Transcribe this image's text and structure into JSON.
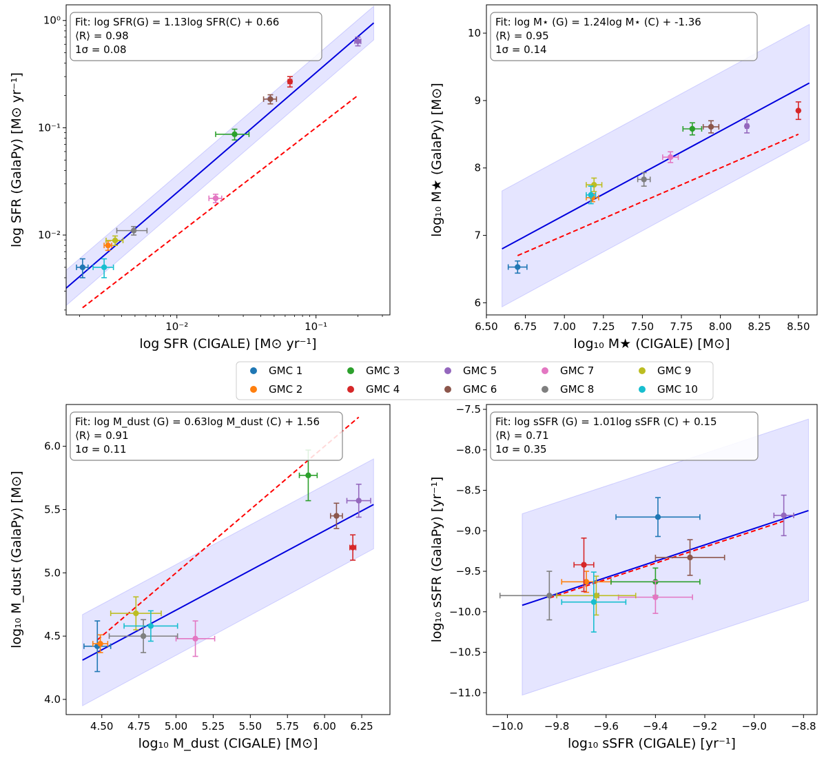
{
  "legend": {
    "placement": "center, between panel rows",
    "entries": [
      {
        "label": "GMC 1",
        "color": "#1f77b4"
      },
      {
        "label": "GMC 2",
        "color": "#ff7f0e"
      },
      {
        "label": "GMC 3",
        "color": "#2ca02c"
      },
      {
        "label": "GMC 4",
        "color": "#d62728"
      },
      {
        "label": "GMC 5",
        "color": "#9467bd"
      },
      {
        "label": "GMC 6",
        "color": "#8c564b"
      },
      {
        "label": "GMC 7",
        "color": "#e377c2"
      },
      {
        "label": "GMC 8",
        "color": "#7f7f7f"
      },
      {
        "label": "GMC 9",
        "color": "#bcbd22"
      },
      {
        "label": "GMC 10",
        "color": "#17becf"
      }
    ]
  },
  "styles": {
    "fit_color": "#0000dd",
    "band_color": "#0000ff",
    "one_to_one_color": "#ff0000"
  },
  "chart_data": [
    {
      "id": "sfr",
      "type": "scatter",
      "xscale": "log",
      "yscale": "log",
      "xlim": [
        0.0016,
        0.34
      ],
      "ylim": [
        0.0018,
        1.4
      ],
      "xlabel": "log SFR (CIGALE) [M⊙ yr⁻¹]",
      "ylabel": "log SFR (GalaPy) [M⊙ yr⁻¹]",
      "xticks": [
        {
          "v": 0.01,
          "label": "10⁻²"
        },
        {
          "v": 0.1,
          "label": "10⁻¹"
        }
      ],
      "yticks": [
        {
          "v": 0.01,
          "label": "10⁻²"
        },
        {
          "v": 0.1,
          "label": "10⁻¹"
        },
        {
          "v": 1,
          "label": "10⁰"
        }
      ],
      "fit_box": {
        "line1": "Fit: log  SFR(G) = 1.13log  SFR(C) + 0.66",
        "line2": "⟨R⟩ = 0.98",
        "line3": "1σ = 0.08"
      },
      "fit_line": {
        "x": [
          0.0016,
          0.26
        ],
        "y": [
          0.0032,
          0.95
        ]
      },
      "band": {
        "x": [
          0.0016,
          0.26
        ],
        "lower": [
          0.0022,
          0.66
        ],
        "upper": [
          0.0047,
          1.36
        ]
      },
      "one_to_one": {
        "x": [
          0.0021,
          0.2
        ],
        "y": [
          0.0021,
          0.2
        ]
      },
      "points": [
        {
          "gmc": 1,
          "x": 0.0021,
          "y": 0.005,
          "xerr": 0.0002,
          "yerr": 0.001
        },
        {
          "gmc": 2,
          "x": 0.0032,
          "y": 0.008,
          "xerr": 0.0002,
          "yerr": 0.0008
        },
        {
          "gmc": 3,
          "x": 0.026,
          "y": 0.087,
          "xerr": 0.007,
          "yerr": 0.01
        },
        {
          "gmc": 4,
          "x": 0.065,
          "y": 0.27,
          "xerr": 0.002,
          "yerr": 0.03
        },
        {
          "gmc": 5,
          "x": 0.2,
          "y": 0.64,
          "xerr": 0.01,
          "yerr": 0.06
        },
        {
          "gmc": 6,
          "x": 0.047,
          "y": 0.185,
          "xerr": 0.005,
          "yerr": 0.018
        },
        {
          "gmc": 7,
          "x": 0.019,
          "y": 0.022,
          "xerr": 0.002,
          "yerr": 0.002
        },
        {
          "gmc": 8,
          "x": 0.0049,
          "y": 0.011,
          "xerr": 0.0012,
          "yerr": 0.001
        },
        {
          "gmc": 9,
          "x": 0.0036,
          "y": 0.0089,
          "xerr": 0.0005,
          "yerr": 0.0009
        },
        {
          "gmc": 10,
          "x": 0.003,
          "y": 0.005,
          "xerr": 0.0005,
          "yerr": 0.001
        }
      ]
    },
    {
      "id": "mstar",
      "type": "scatter",
      "xscale": "linear",
      "yscale": "linear",
      "xlim": [
        6.5,
        8.62
      ],
      "ylim": [
        5.82,
        10.42
      ],
      "xlabel": "log₁₀ M★ (CIGALE) [M⊙]",
      "ylabel": "log₁₀ M★ (GalaPy) [M⊙]",
      "xticks": [
        {
          "v": 6.5,
          "label": "6.50"
        },
        {
          "v": 6.75,
          "label": "6.75"
        },
        {
          "v": 7.0,
          "label": "7.00"
        },
        {
          "v": 7.25,
          "label": "7.25"
        },
        {
          "v": 7.5,
          "label": "7.50"
        },
        {
          "v": 7.75,
          "label": "7.75"
        },
        {
          "v": 8.0,
          "label": "8.00"
        },
        {
          "v": 8.25,
          "label": "8.25"
        },
        {
          "v": 8.5,
          "label": "8.50"
        }
      ],
      "yticks": [
        {
          "v": 6,
          "label": "6"
        },
        {
          "v": 7,
          "label": "7"
        },
        {
          "v": 8,
          "label": "8"
        },
        {
          "v": 9,
          "label": "9"
        },
        {
          "v": 10,
          "label": "10"
        }
      ],
      "fit_box": {
        "line1": "Fit: log  M⋆ (G) = 1.24log  M⋆ (C) + -1.36",
        "line2": "⟨R⟩ = 0.95",
        "line3": "1σ = 0.14"
      },
      "fit_line": {
        "x": [
          6.6,
          8.57
        ],
        "y": [
          6.8,
          9.26
        ]
      },
      "band": {
        "x": [
          6.6,
          8.57
        ],
        "lower": [
          5.94,
          8.41
        ],
        "upper": [
          7.66,
          10.13
        ]
      },
      "one_to_one": {
        "x": [
          6.7,
          8.5
        ],
        "y": [
          6.7,
          8.5
        ]
      },
      "points": [
        {
          "gmc": 1,
          "x": 6.7,
          "y": 6.53,
          "xerr": 0.06,
          "yerr": 0.09
        },
        {
          "gmc": 2,
          "x": 7.18,
          "y": 7.56,
          "xerr": 0.04,
          "yerr": 0.06
        },
        {
          "gmc": 3,
          "x": 7.82,
          "y": 8.58,
          "xerr": 0.06,
          "yerr": 0.09
        },
        {
          "gmc": 4,
          "x": 8.5,
          "y": 8.85,
          "xerr": 0.0,
          "yerr": 0.13
        },
        {
          "gmc": 5,
          "x": 8.17,
          "y": 8.62,
          "xerr": 0.01,
          "yerr": 0.1
        },
        {
          "gmc": 6,
          "x": 7.94,
          "y": 8.61,
          "xerr": 0.05,
          "yerr": 0.09
        },
        {
          "gmc": 7,
          "x": 7.68,
          "y": 8.16,
          "xerr": 0.05,
          "yerr": 0.08
        },
        {
          "gmc": 8,
          "x": 7.51,
          "y": 7.83,
          "xerr": 0.04,
          "yerr": 0.1
        },
        {
          "gmc": 9,
          "x": 7.19,
          "y": 7.75,
          "xerr": 0.05,
          "yerr": 0.1
        },
        {
          "gmc": 10,
          "x": 7.17,
          "y": 7.6,
          "xerr": 0.03,
          "yerr": 0.13
        }
      ]
    },
    {
      "id": "mdust",
      "type": "scatter",
      "xscale": "linear",
      "yscale": "linear",
      "xlim": [
        4.26,
        6.44
      ],
      "ylim": [
        3.88,
        6.33
      ],
      "xlabel": "log₁₀ M_dust (CIGALE) [M⊙]",
      "ylabel": "log₁₀ M_dust (GalaPy) [M⊙]",
      "xticks": [
        {
          "v": 4.5,
          "label": "4.50"
        },
        {
          "v": 4.75,
          "label": "4.75"
        },
        {
          "v": 5.0,
          "label": "5.00"
        },
        {
          "v": 5.25,
          "label": "5.25"
        },
        {
          "v": 5.5,
          "label": "5.50"
        },
        {
          "v": 5.75,
          "label": "5.75"
        },
        {
          "v": 6.0,
          "label": "6.00"
        },
        {
          "v": 6.25,
          "label": "6.25"
        }
      ],
      "yticks": [
        {
          "v": 4.0,
          "label": "4.0"
        },
        {
          "v": 4.5,
          "label": "4.5"
        },
        {
          "v": 5.0,
          "label": "5.0"
        },
        {
          "v": 5.5,
          "label": "5.5"
        },
        {
          "v": 6.0,
          "label": "6.0"
        }
      ],
      "fit_box": {
        "line1": "Fit: log  M_dust (G) = 0.63log  M_dust (C) + 1.56",
        "line2": "⟨R⟩ = 0.91",
        "line3": "1σ = 0.11"
      },
      "fit_line": {
        "x": [
          4.37,
          6.33
        ],
        "y": [
          4.31,
          5.54
        ]
      },
      "band": {
        "x": [
          4.37,
          6.33
        ],
        "lower": [
          3.95,
          5.19
        ],
        "upper": [
          4.67,
          5.9
        ]
      },
      "one_to_one": {
        "x": [
          4.47,
          6.23
        ],
        "y": [
          4.47,
          6.23
        ]
      },
      "points": [
        {
          "gmc": 1,
          "x": 4.47,
          "y": 4.42,
          "xerr": 0.09,
          "yerr": 0.2
        },
        {
          "gmc": 2,
          "x": 4.49,
          "y": 4.44,
          "xerr": 0.05,
          "yerr": 0.07
        },
        {
          "gmc": 3,
          "x": 5.89,
          "y": 5.77,
          "xerr": 0.06,
          "yerr": 0.2
        },
        {
          "gmc": 4,
          "x": 6.19,
          "y": 5.2,
          "xerr": 0.02,
          "yerr": 0.1
        },
        {
          "gmc": 5,
          "x": 6.23,
          "y": 5.57,
          "xerr": 0.08,
          "yerr": 0.13
        },
        {
          "gmc": 6,
          "x": 6.08,
          "y": 5.45,
          "xerr": 0.04,
          "yerr": 0.1
        },
        {
          "gmc": 7,
          "x": 5.13,
          "y": 4.48,
          "xerr": 0.13,
          "yerr": 0.14
        },
        {
          "gmc": 8,
          "x": 4.78,
          "y": 4.5,
          "xerr": 0.23,
          "yerr": 0.13
        },
        {
          "gmc": 9,
          "x": 4.73,
          "y": 4.68,
          "xerr": 0.17,
          "yerr": 0.13
        },
        {
          "gmc": 10,
          "x": 4.83,
          "y": 4.58,
          "xerr": 0.18,
          "yerr": 0.12
        }
      ]
    },
    {
      "id": "ssfr",
      "type": "scatter",
      "xscale": "linear",
      "yscale": "linear",
      "xlim": [
        -10.085,
        -8.745
      ],
      "ylim": [
        -11.27,
        -7.44
      ],
      "xlabel": "log₁₀ sSFR (CIGALE) [yr⁻¹]",
      "ylabel": "log₁₀ sSFR (GalaPy) [yr⁻¹]",
      "xticks": [
        {
          "v": -10.0,
          "label": "−10.0"
        },
        {
          "v": -9.8,
          "label": "−9.8"
        },
        {
          "v": -9.6,
          "label": "−9.6"
        },
        {
          "v": -9.4,
          "label": "−9.4"
        },
        {
          "v": -9.2,
          "label": "−9.2"
        },
        {
          "v": -9.0,
          "label": "−9.0"
        },
        {
          "v": -8.8,
          "label": "−8.8"
        }
      ],
      "yticks": [
        {
          "v": -11.0,
          "label": "−11.0"
        },
        {
          "v": -10.5,
          "label": "−10.5"
        },
        {
          "v": -10.0,
          "label": "−10.0"
        },
        {
          "v": -9.5,
          "label": "−9.5"
        },
        {
          "v": -9.0,
          "label": "−9.0"
        },
        {
          "v": -8.5,
          "label": "−8.5"
        },
        {
          "v": -8.0,
          "label": "−8.0"
        },
        {
          "v": -7.5,
          "label": "−7.5"
        }
      ],
      "fit_box": {
        "line1": "Fit: log  sSFR (G) = 1.01log  sSFR (C) + 0.15",
        "line2": "⟨R⟩ = 0.71",
        "line3": "1σ = 0.35"
      },
      "fit_line": {
        "x": [
          -9.94,
          -8.78
        ],
        "y": [
          -9.92,
          -8.75
        ]
      },
      "band": {
        "x": [
          -9.94,
          -8.78
        ],
        "lower": [
          -11.03,
          -9.86
        ],
        "upper": [
          -8.79,
          -7.62
        ]
      },
      "one_to_one": {
        "x": [
          -9.83,
          -8.88
        ],
        "y": [
          -9.83,
          -8.88
        ]
      },
      "points": [
        {
          "gmc": 1,
          "x": -9.39,
          "y": -8.83,
          "xerr": 0.17,
          "yerr": 0.24
        },
        {
          "gmc": 2,
          "x": -9.68,
          "y": -9.63,
          "xerr": 0.1,
          "yerr": 0.13
        },
        {
          "gmc": 3,
          "x": -9.4,
          "y": -9.63,
          "xerr": 0.18,
          "yerr": 0.17
        },
        {
          "gmc": 4,
          "x": -9.69,
          "y": -9.42,
          "xerr": 0.04,
          "yerr": 0.33
        },
        {
          "gmc": 5,
          "x": -8.88,
          "y": -8.81,
          "xerr": 0.04,
          "yerr": 0.25
        },
        {
          "gmc": 6,
          "x": -9.26,
          "y": -9.33,
          "xerr": 0.14,
          "yerr": 0.22
        },
        {
          "gmc": 7,
          "x": -9.4,
          "y": -9.82,
          "xerr": 0.15,
          "yerr": 0.2
        },
        {
          "gmc": 8,
          "x": -9.83,
          "y": -9.8,
          "xerr": 0.2,
          "yerr": 0.3
        },
        {
          "gmc": 9,
          "x": -9.64,
          "y": -9.8,
          "xerr": 0.16,
          "yerr": 0.24
        },
        {
          "gmc": 10,
          "x": -9.65,
          "y": -9.88,
          "xerr": 0.13,
          "yerr": 0.37
        }
      ]
    }
  ]
}
